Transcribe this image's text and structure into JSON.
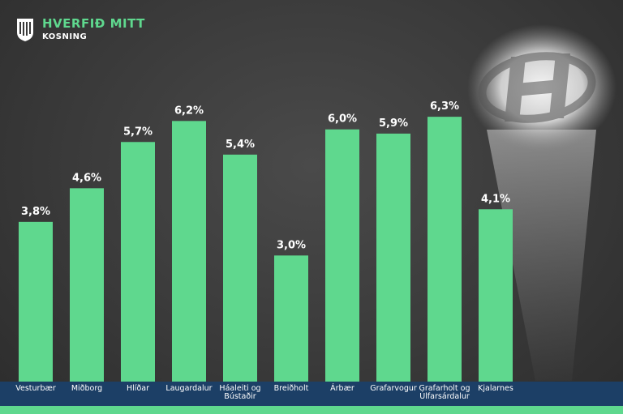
{
  "brand": {
    "title": "HVERFIÐ MITT",
    "subtitle": "KOSNING",
    "accent": "#5fd88e",
    "navy": "#1c3f66",
    "spotlight_icon": "h-letter-spotlight-icon",
    "logo_icon": "reykjavik-crest-icon"
  },
  "chart_data": {
    "type": "bar",
    "categories": [
      [
        "Vesturbær"
      ],
      [
        "Miðborg"
      ],
      [
        "Hlíðar"
      ],
      [
        "Laugardalur"
      ],
      [
        "Háaleiti og",
        "Bústaðir"
      ],
      [
        "Breiðholt"
      ],
      [
        "Árbær"
      ],
      [
        "Grafarvogur"
      ],
      [
        "Grafarholt og",
        "Úlfarsárdalur"
      ],
      [
        "Kjalarnes"
      ]
    ],
    "values": [
      3.8,
      4.6,
      5.7,
      6.2,
      5.4,
      3.0,
      6.0,
      5.9,
      6.3,
      4.1
    ],
    "data_labels": [
      "3,8%",
      "4,6%",
      "5,7%",
      "6,2%",
      "5,4%",
      "3,0%",
      "6,0%",
      "5,9%",
      "6,3%",
      "4,1%"
    ],
    "ylim": [
      0,
      8.5
    ],
    "bar_color": "#5fd88e",
    "grid": false,
    "legend": "none"
  }
}
